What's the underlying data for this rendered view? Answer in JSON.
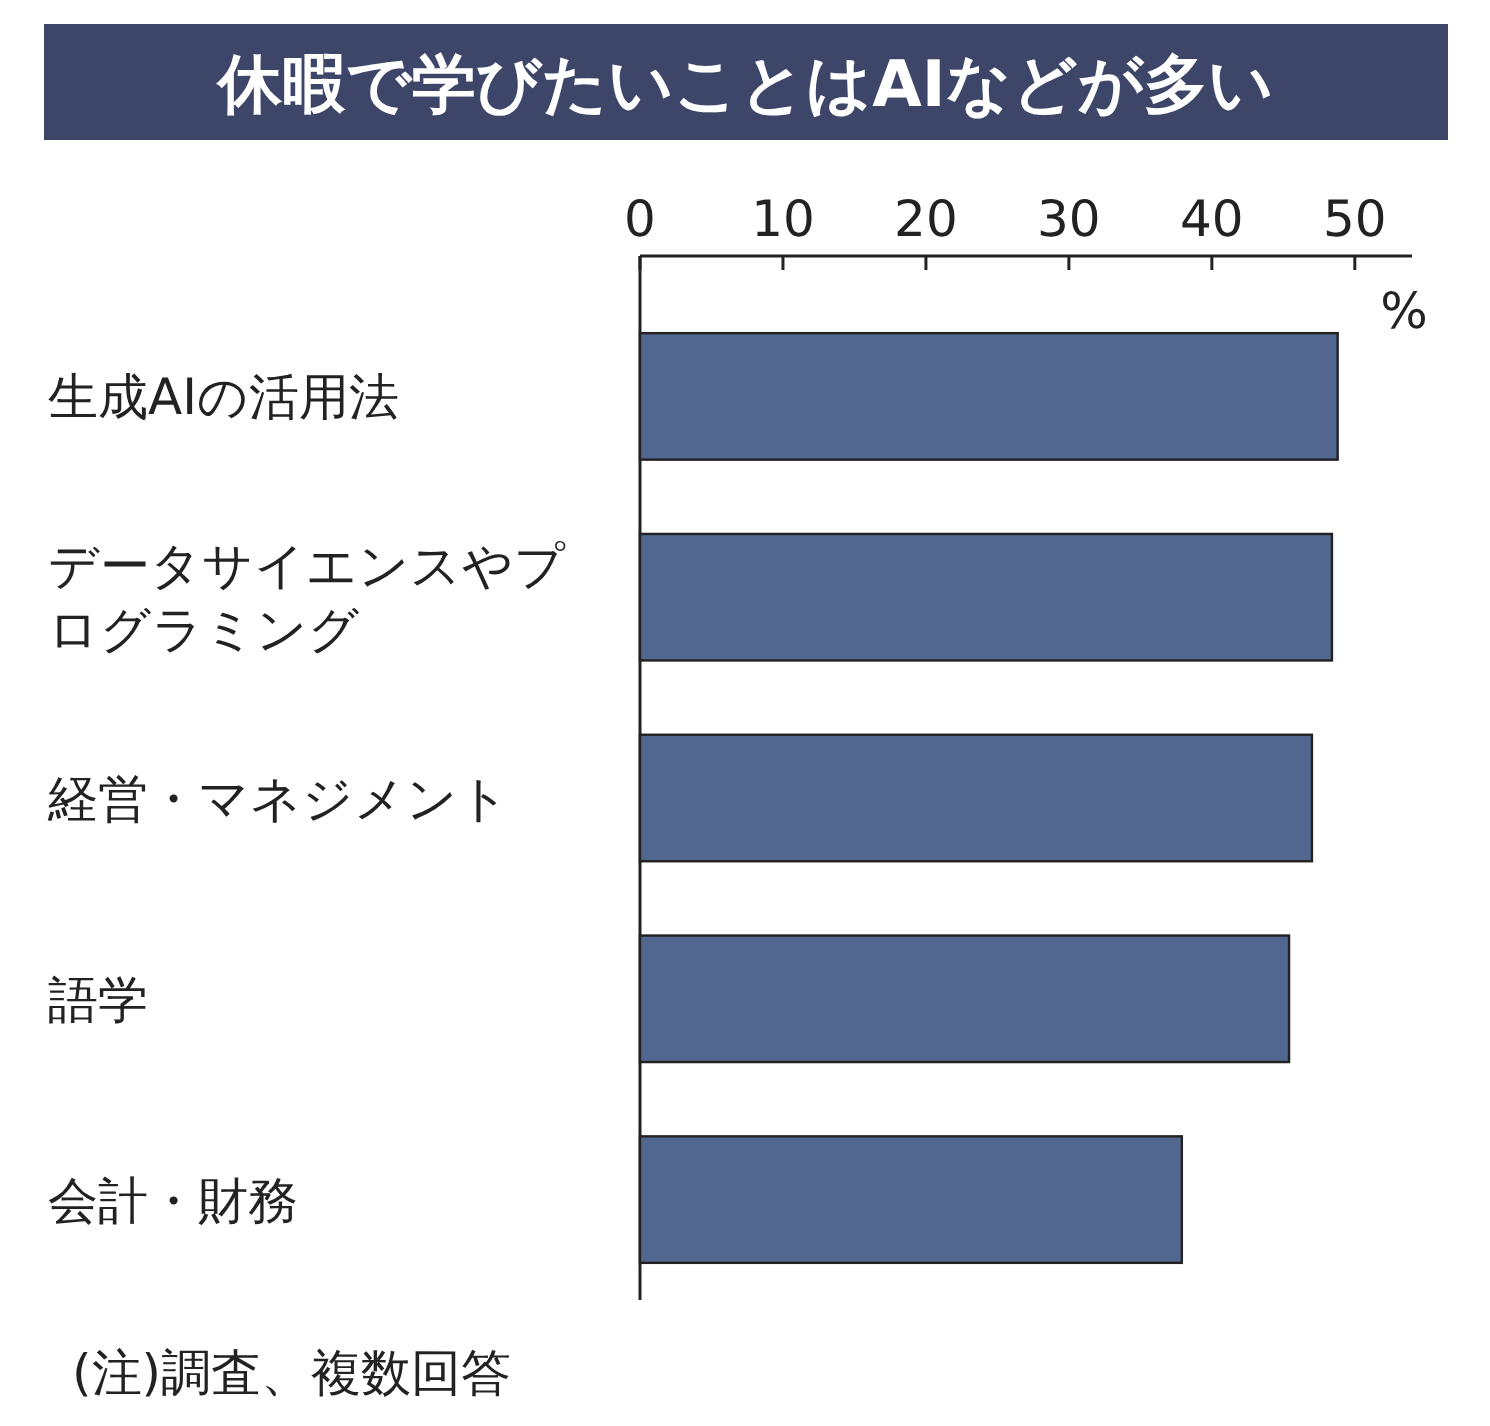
{
  "chart_data": {
    "type": "bar",
    "orientation": "horizontal",
    "title": "休暇で学びたいことはAIなどが多い",
    "categories": [
      "生成AIの活用法",
      "データサイエンスやプログラミング",
      "経営・マネジメント",
      "語学",
      "会計・財務"
    ],
    "values": [
      48.8,
      48.4,
      47.0,
      45.4,
      37.9
    ],
    "color": "#52678f",
    "xlim": [
      0,
      54
    ],
    "xticks": [
      0,
      10,
      20,
      30,
      40,
      50
    ],
    "xlabel": "%",
    "annotations": [
      "(注)調査、複数回答"
    ]
  }
}
